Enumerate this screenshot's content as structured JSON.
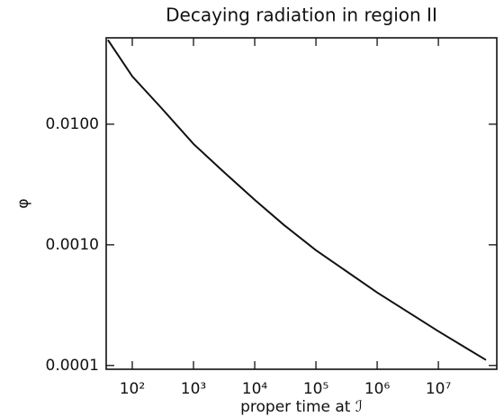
{
  "chart_data": {
    "type": "line",
    "title": "Decaying radiation in region II",
    "xlabel": "proper time at ℐ",
    "ylabel": "φ",
    "x": [
      40,
      100,
      300,
      1000,
      3000,
      10000,
      30000,
      100000,
      1000000,
      10000000,
      60000000
    ],
    "series": [
      {
        "color": "#111111",
        "values": [
          0.05,
          0.0249,
          0.0136,
          0.00686,
          0.00409,
          0.00236,
          0.00146,
          0.000902,
          0.000402,
          0.000192,
          0.000111
        ]
      }
    ],
    "xscale": "log",
    "yscale": "log",
    "xlim": [
      37.5,
      90000000
    ],
    "ylim": [
      9.3e-05,
      0.052
    ],
    "xticks": [
      {
        "value": 100,
        "label": "10²"
      },
      {
        "value": 1000,
        "label": "10³"
      },
      {
        "value": 10000,
        "label": "10⁴"
      },
      {
        "value": 100000,
        "label": "10⁵"
      },
      {
        "value": 1000000,
        "label": "10⁶"
      },
      {
        "value": 10000000,
        "label": "10⁷"
      }
    ],
    "yticks": [
      {
        "value": 0.0001,
        "label": "0.0001"
      },
      {
        "value": 0.001,
        "label": "0.0010"
      },
      {
        "value": 0.01,
        "label": "0.0100"
      }
    ],
    "grid": false
  }
}
